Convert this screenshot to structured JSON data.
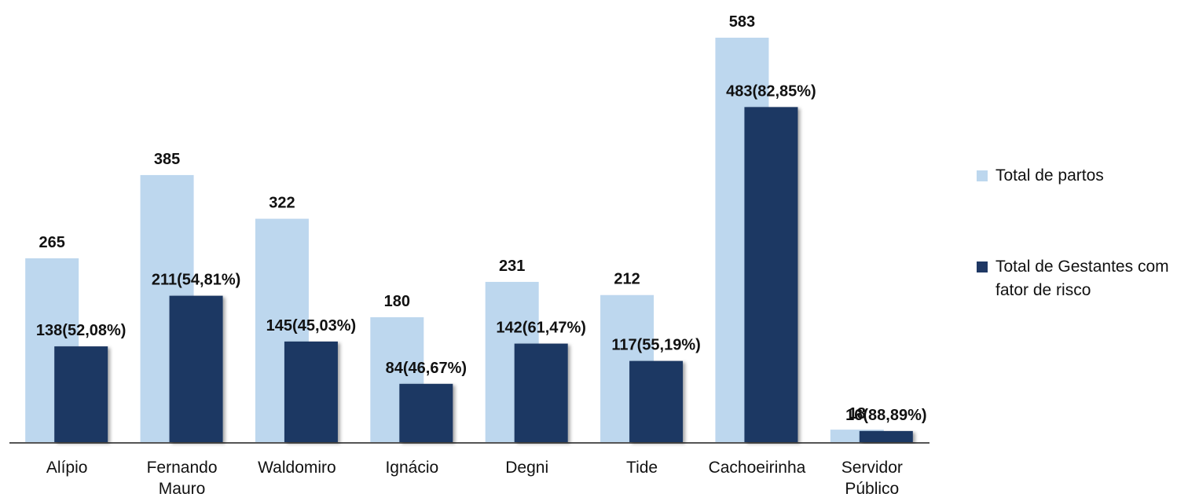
{
  "chart_data": {
    "type": "bar",
    "categories": [
      "Alípio",
      "Fernando Mauro",
      "Waldomiro",
      "Ignácio",
      "Degni",
      "Tide",
      "Cachoeirinha",
      "Servidor Público"
    ],
    "series": [
      {
        "name": "Total de partos",
        "color": "#bdd7ee",
        "values": [
          265,
          385,
          322,
          180,
          231,
          212,
          583,
          18
        ]
      },
      {
        "name": "Total de Gestantes com fator de risco",
        "color": "#1f3864",
        "values": [
          138,
          211,
          145,
          84,
          142,
          117,
          483,
          16
        ],
        "value_labels": [
          "138(52,08%)",
          "211(54,81%)",
          "145(45,03%)",
          "84(46,67%)",
          "142(61,47%)",
          "117(55,19%)",
          "483(82,85%)",
          "16(88,89%)"
        ]
      }
    ],
    "legend": "right"
  }
}
